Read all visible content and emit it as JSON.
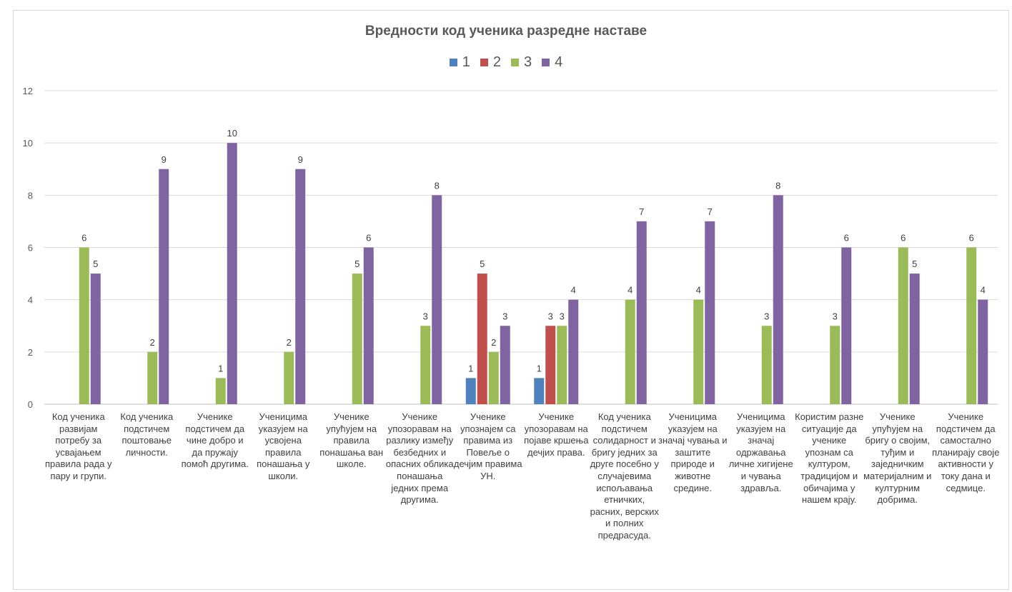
{
  "chart_data": {
    "type": "bar",
    "title": "Вредности код ученика разредне наставе",
    "xlabel": "",
    "ylabel": "",
    "ylim": [
      0,
      12
    ],
    "yticks": [
      0,
      2,
      4,
      6,
      8,
      10,
      12
    ],
    "grid": true,
    "legend_position": "top",
    "categories": [
      "Код ученика развијам потребу за усвајањем правила рада у пару и групи.",
      "Код ученика подстичем поштовање личности.",
      "Ученике подстичем да чине добро и да пружају помоћ другима.",
      "Ученицима указујем на усвојена правила понашања у школи.",
      "Ученике упућујем на правила понашања ван школе.",
      "Ученике упозоравам на разлику између безбедних и опасних облика понашања једних према другима.",
      "Ученике упознајем са правима из Повеље о дечјим правима  УН.",
      "Ученике упозоравам на појаве кршења дечјих права.",
      "Код ученика подстичем солидарност и бригу једних за друге посебно у случајевима испољавања етничких, расних, верских и полних предрасуда.",
      "Ученицима указујем на значај чувања и заштите природе и животне средине.",
      "Ученицима указујем на значај одржавања личне хигијене и чувања здравља.",
      "Користим разне ситуације да ученике упознам са културом, традицијом и обичајима у нашем крају.",
      "Ученике упућујем на бригу о својим, туђим и заједничким материјалним и културним добрима.",
      "Ученике подстичем да самостално планирају своје активности у току дана и седмице."
    ],
    "series": [
      {
        "name": "1",
        "color": "#4f81bd",
        "values": [
          null,
          null,
          null,
          null,
          null,
          null,
          1,
          1,
          null,
          null,
          null,
          null,
          null,
          null
        ]
      },
      {
        "name": "2",
        "color": "#c0504d",
        "values": [
          null,
          null,
          null,
          null,
          null,
          null,
          5,
          3,
          null,
          null,
          null,
          null,
          null,
          null
        ]
      },
      {
        "name": "3",
        "color": "#9bbb59",
        "values": [
          6,
          2,
          1,
          2,
          5,
          3,
          2,
          3,
          4,
          4,
          3,
          3,
          6,
          6
        ]
      },
      {
        "name": "4",
        "color": "#8064a2",
        "values": [
          5,
          9,
          10,
          9,
          6,
          8,
          3,
          4,
          7,
          7,
          8,
          6,
          5,
          4
        ]
      }
    ]
  }
}
